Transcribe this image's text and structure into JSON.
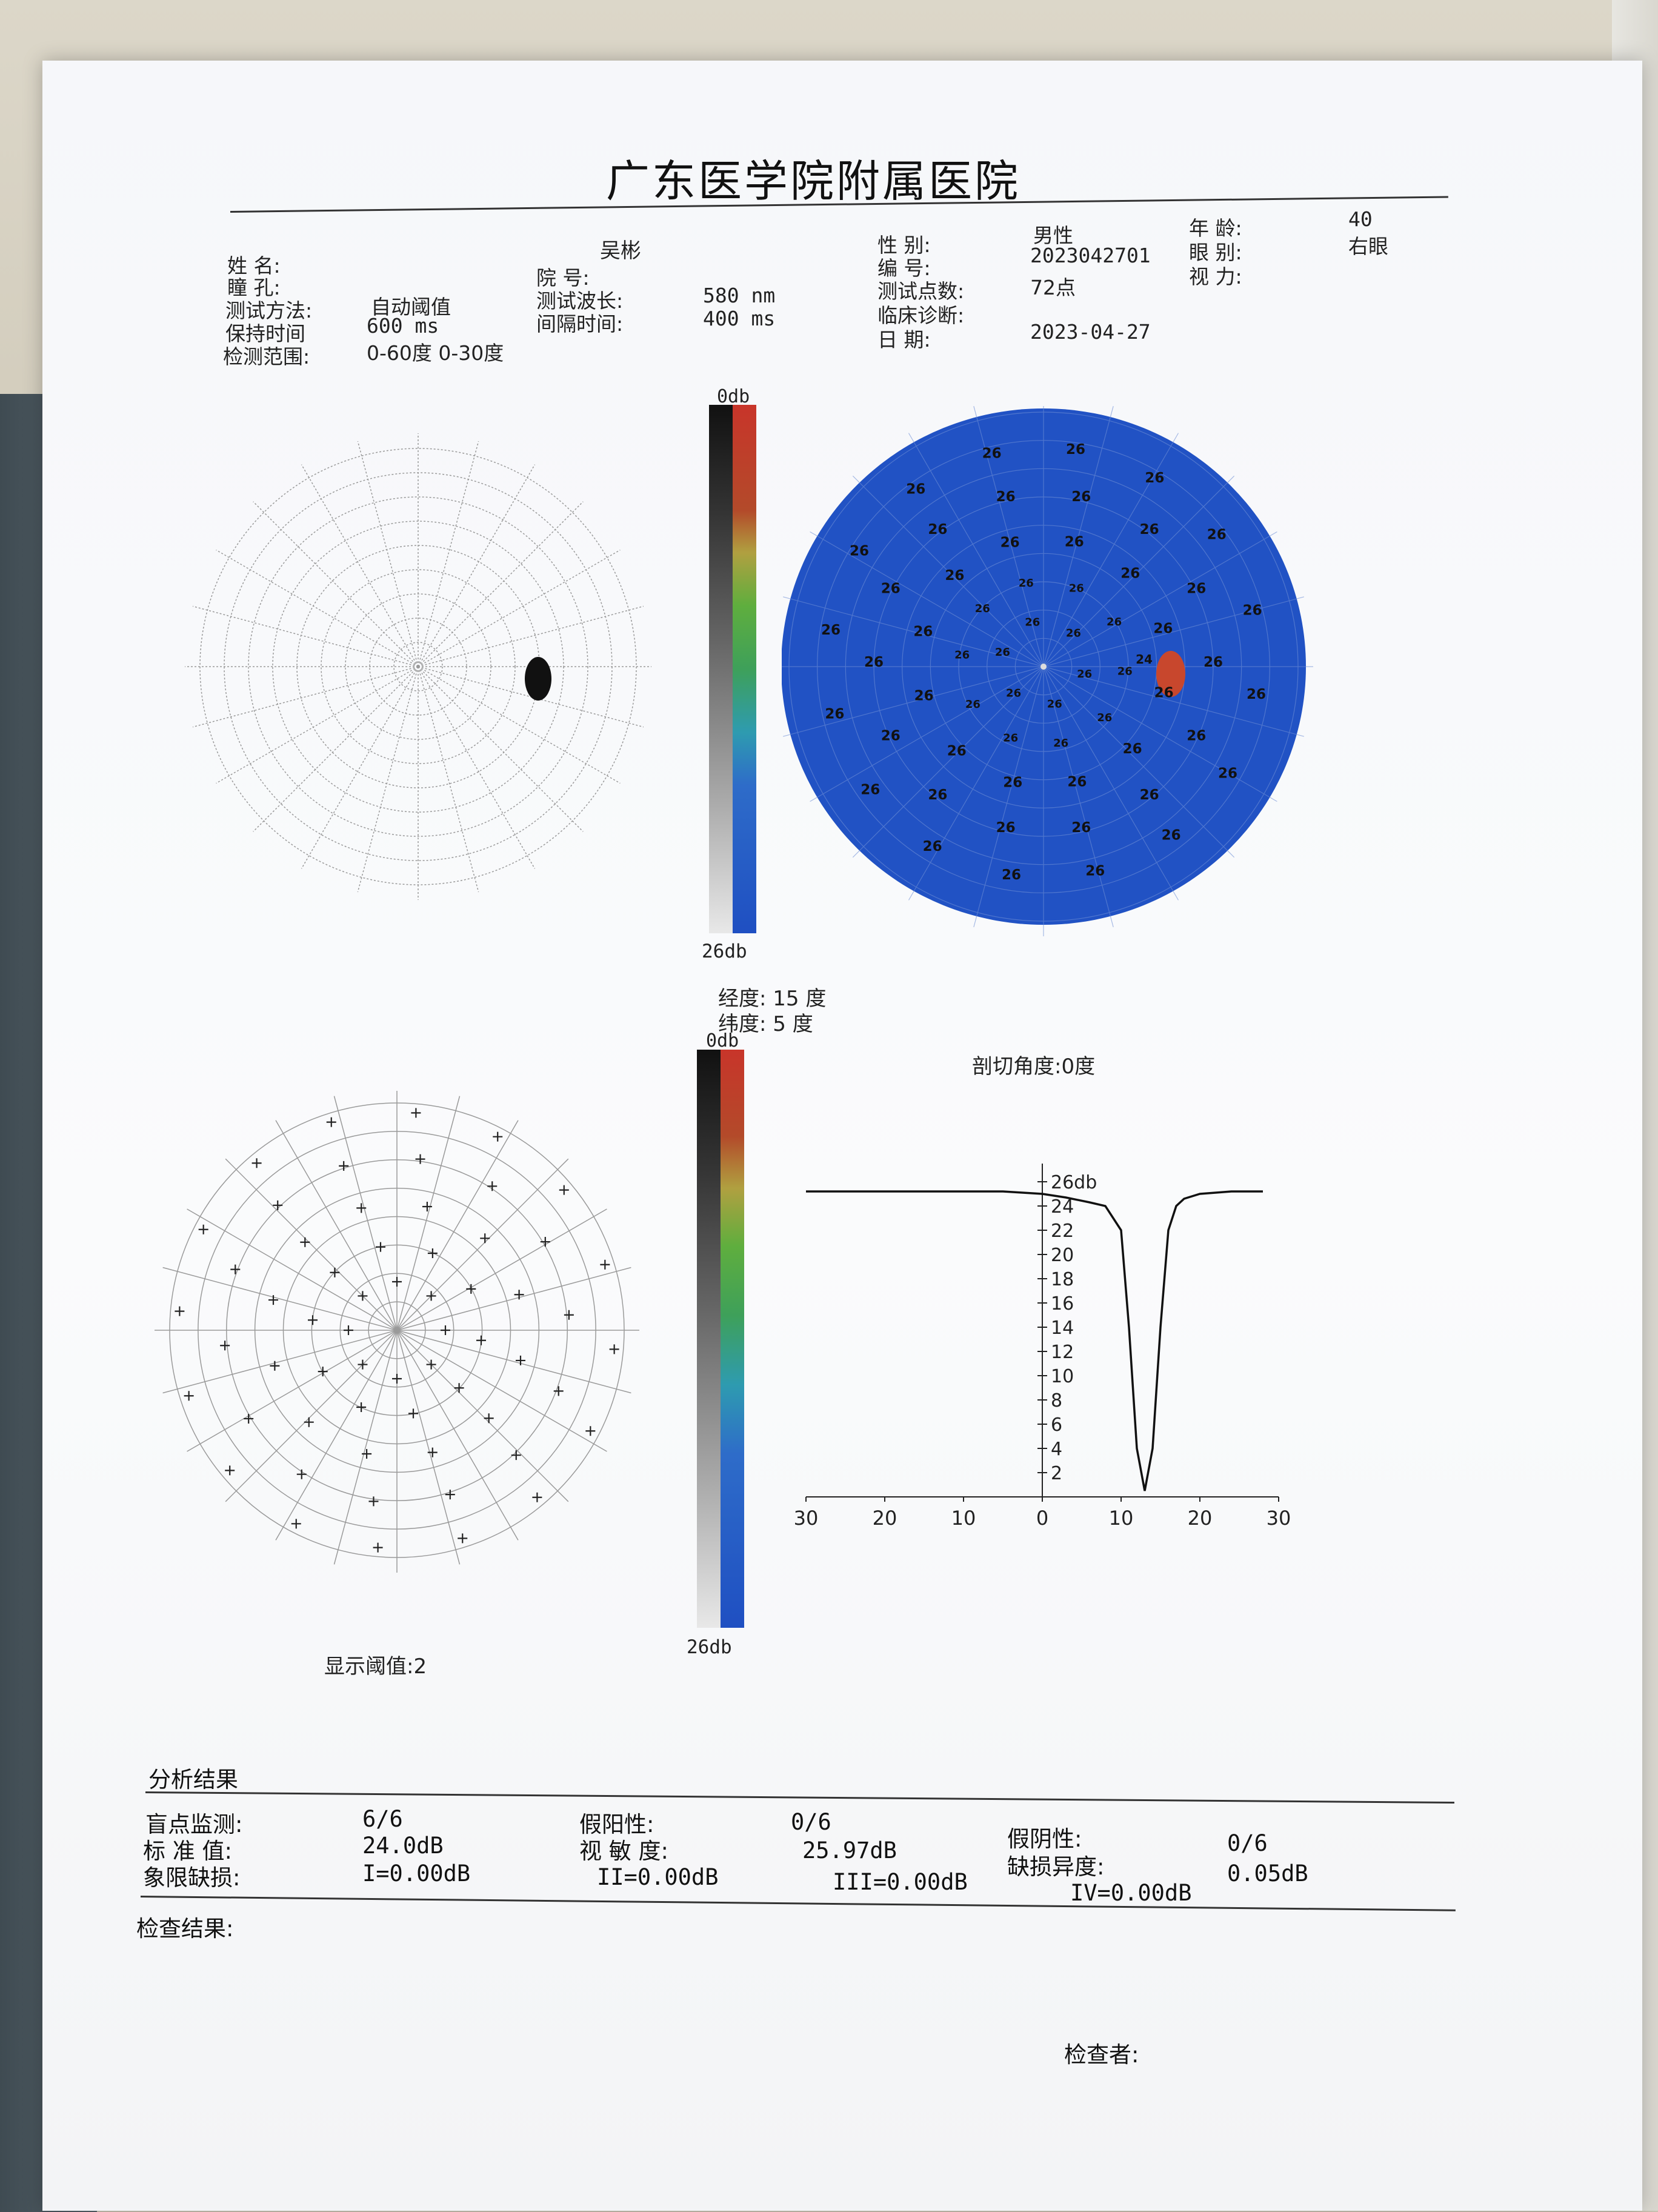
{
  "report": {
    "hospital": "广东医学院附属医院",
    "patient": {
      "name_label": "姓    名:",
      "name_value": "吴彬",
      "pupil_label": "瞳    孔:",
      "hosp_no_label": "院    号:",
      "test_method_label": "测试方法:",
      "test_method_value": "自动阈值",
      "wavelength_label": "测试波长:",
      "wavelength_value": "580 nm",
      "hold_time_label": "保持时间",
      "hold_time_value": "600 ms",
      "interval_label": "间隔时间:",
      "interval_value": "400 ms",
      "range_label": "检测范围:",
      "range_value": "0-60度 0-30度",
      "sex_label": "性    别:",
      "sex_value": "男性",
      "id_label": "编    号:",
      "id_value": "2023042701",
      "points_label": "测试点数:",
      "points_value": "72点",
      "diagnosis_label": "临床诊断:",
      "date_label": "日    期:",
      "date_value": "2023-04-27",
      "age_label": "年    龄:",
      "age_value": "40",
      "eye_label": "眼    别:",
      "eye_value": "右眼",
      "vision_label": "视    力:"
    },
    "scale_top": "0db",
    "scale_bottom": "26db",
    "longitude": "经度: 15 度",
    "latitude": "纬度:  5 度",
    "cut_angle": "剖切角度:0度",
    "display_threshold": "显示阈值:2",
    "analysis": {
      "heading": "分析结果",
      "blind_spot_label": "盲点监测:",
      "blind_spot_value": "6/6",
      "false_pos_label": "假阳性:",
      "false_pos_value": "0/6",
      "false_neg_label": "假阴性:",
      "false_neg_value": "0/6",
      "std_label": "标 准 值:",
      "std_value": "24.0dB",
      "sensitivity_label": "视 敏 度:",
      "sensitivity_value": "25.97dB",
      "quadrant_label": "象限缺损:",
      "q1": "I=0.00dB",
      "q2": "II=0.00dB",
      "q3": "III=0.00dB",
      "q4": "IV=0.00dB",
      "defect_label": "缺损异度:",
      "defect_value": "0.05dB"
    },
    "exam_result_label": "检查结果:",
    "examiner_label": "检查者:",
    "colors": {
      "field_blue": "#2152c4",
      "defect_red": "#c8472d",
      "paper": "#f6f7fa"
    }
  },
  "chart_data": {
    "type": "line",
    "title": "剖切角度:0度",
    "x_ticks": [
      30,
      20,
      10,
      0,
      10,
      20,
      30
    ],
    "y_ticks": [
      "26db",
      "24",
      "22",
      "20",
      "18",
      "16",
      "14",
      "12",
      "10",
      "8",
      "6",
      "4",
      "2"
    ],
    "xlim": [
      -30,
      30
    ],
    "ylim": [
      0,
      26
    ],
    "series": [
      {
        "x": [
          -30,
          -5,
          0,
          3,
          6,
          8,
          10,
          11,
          12,
          13,
          14,
          15,
          16,
          17,
          18,
          20,
          24,
          28
        ],
        "values": [
          25.2,
          25.2,
          25.0,
          24.7,
          24.3,
          24.0,
          22.0,
          14.0,
          4.0,
          0.5,
          4.0,
          14.0,
          22.0,
          24.0,
          24.6,
          25.0,
          25.2,
          25.2
        ]
      }
    ]
  }
}
